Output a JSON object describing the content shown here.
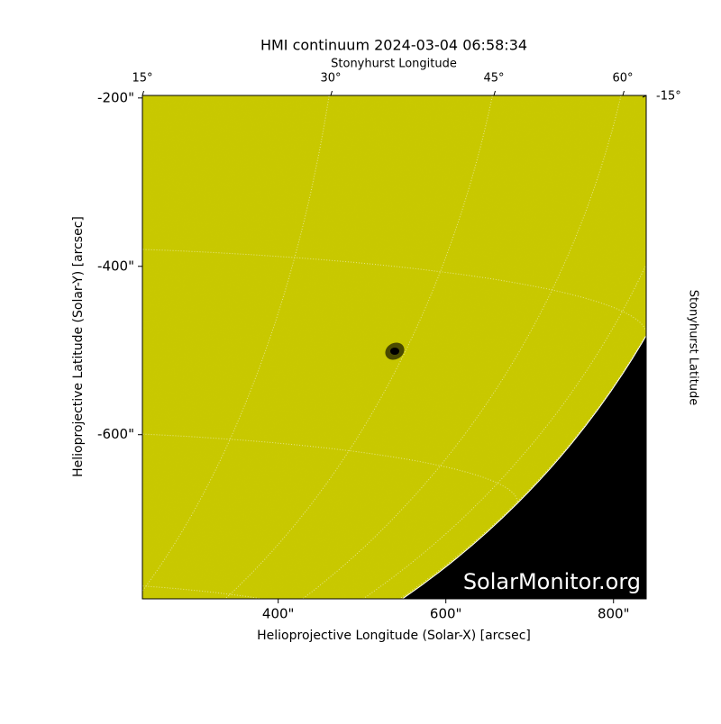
{
  "chart_data": {
    "type": "image",
    "title": "HMI continuum 2024-03-04 06:58:34",
    "xlabel": "Helioprojective Longitude (Solar-X) [arcsec]",
    "ylabel": "Helioprojective Latitude (Solar-Y) [arcsec]",
    "top_label": "Stonyhurst Longitude",
    "right_label": "Stonyhurst Latitude",
    "watermark": "SolarMonitor.org",
    "xlim": [
      238,
      839
    ],
    "ylim": [
      -795,
      -197
    ],
    "xticks": [
      {
        "value": 400,
        "label": "400\""
      },
      {
        "value": 600,
        "label": "600\""
      },
      {
        "value": 800,
        "label": "800\""
      }
    ],
    "yticks": [
      {
        "value": -200,
        "label": "-200\""
      },
      {
        "value": -400,
        "label": "-400\""
      },
      {
        "value": -600,
        "label": "-600\""
      }
    ],
    "top_ticks": [
      {
        "value": 15,
        "label": "15°"
      },
      {
        "value": 30,
        "label": "30°"
      },
      {
        "value": 45,
        "label": "45°"
      },
      {
        "value": 60,
        "label": "60°"
      }
    ],
    "right_ticks": [
      {
        "value": -15,
        "label": "-15°"
      }
    ],
    "color": "#c8c800"
  }
}
